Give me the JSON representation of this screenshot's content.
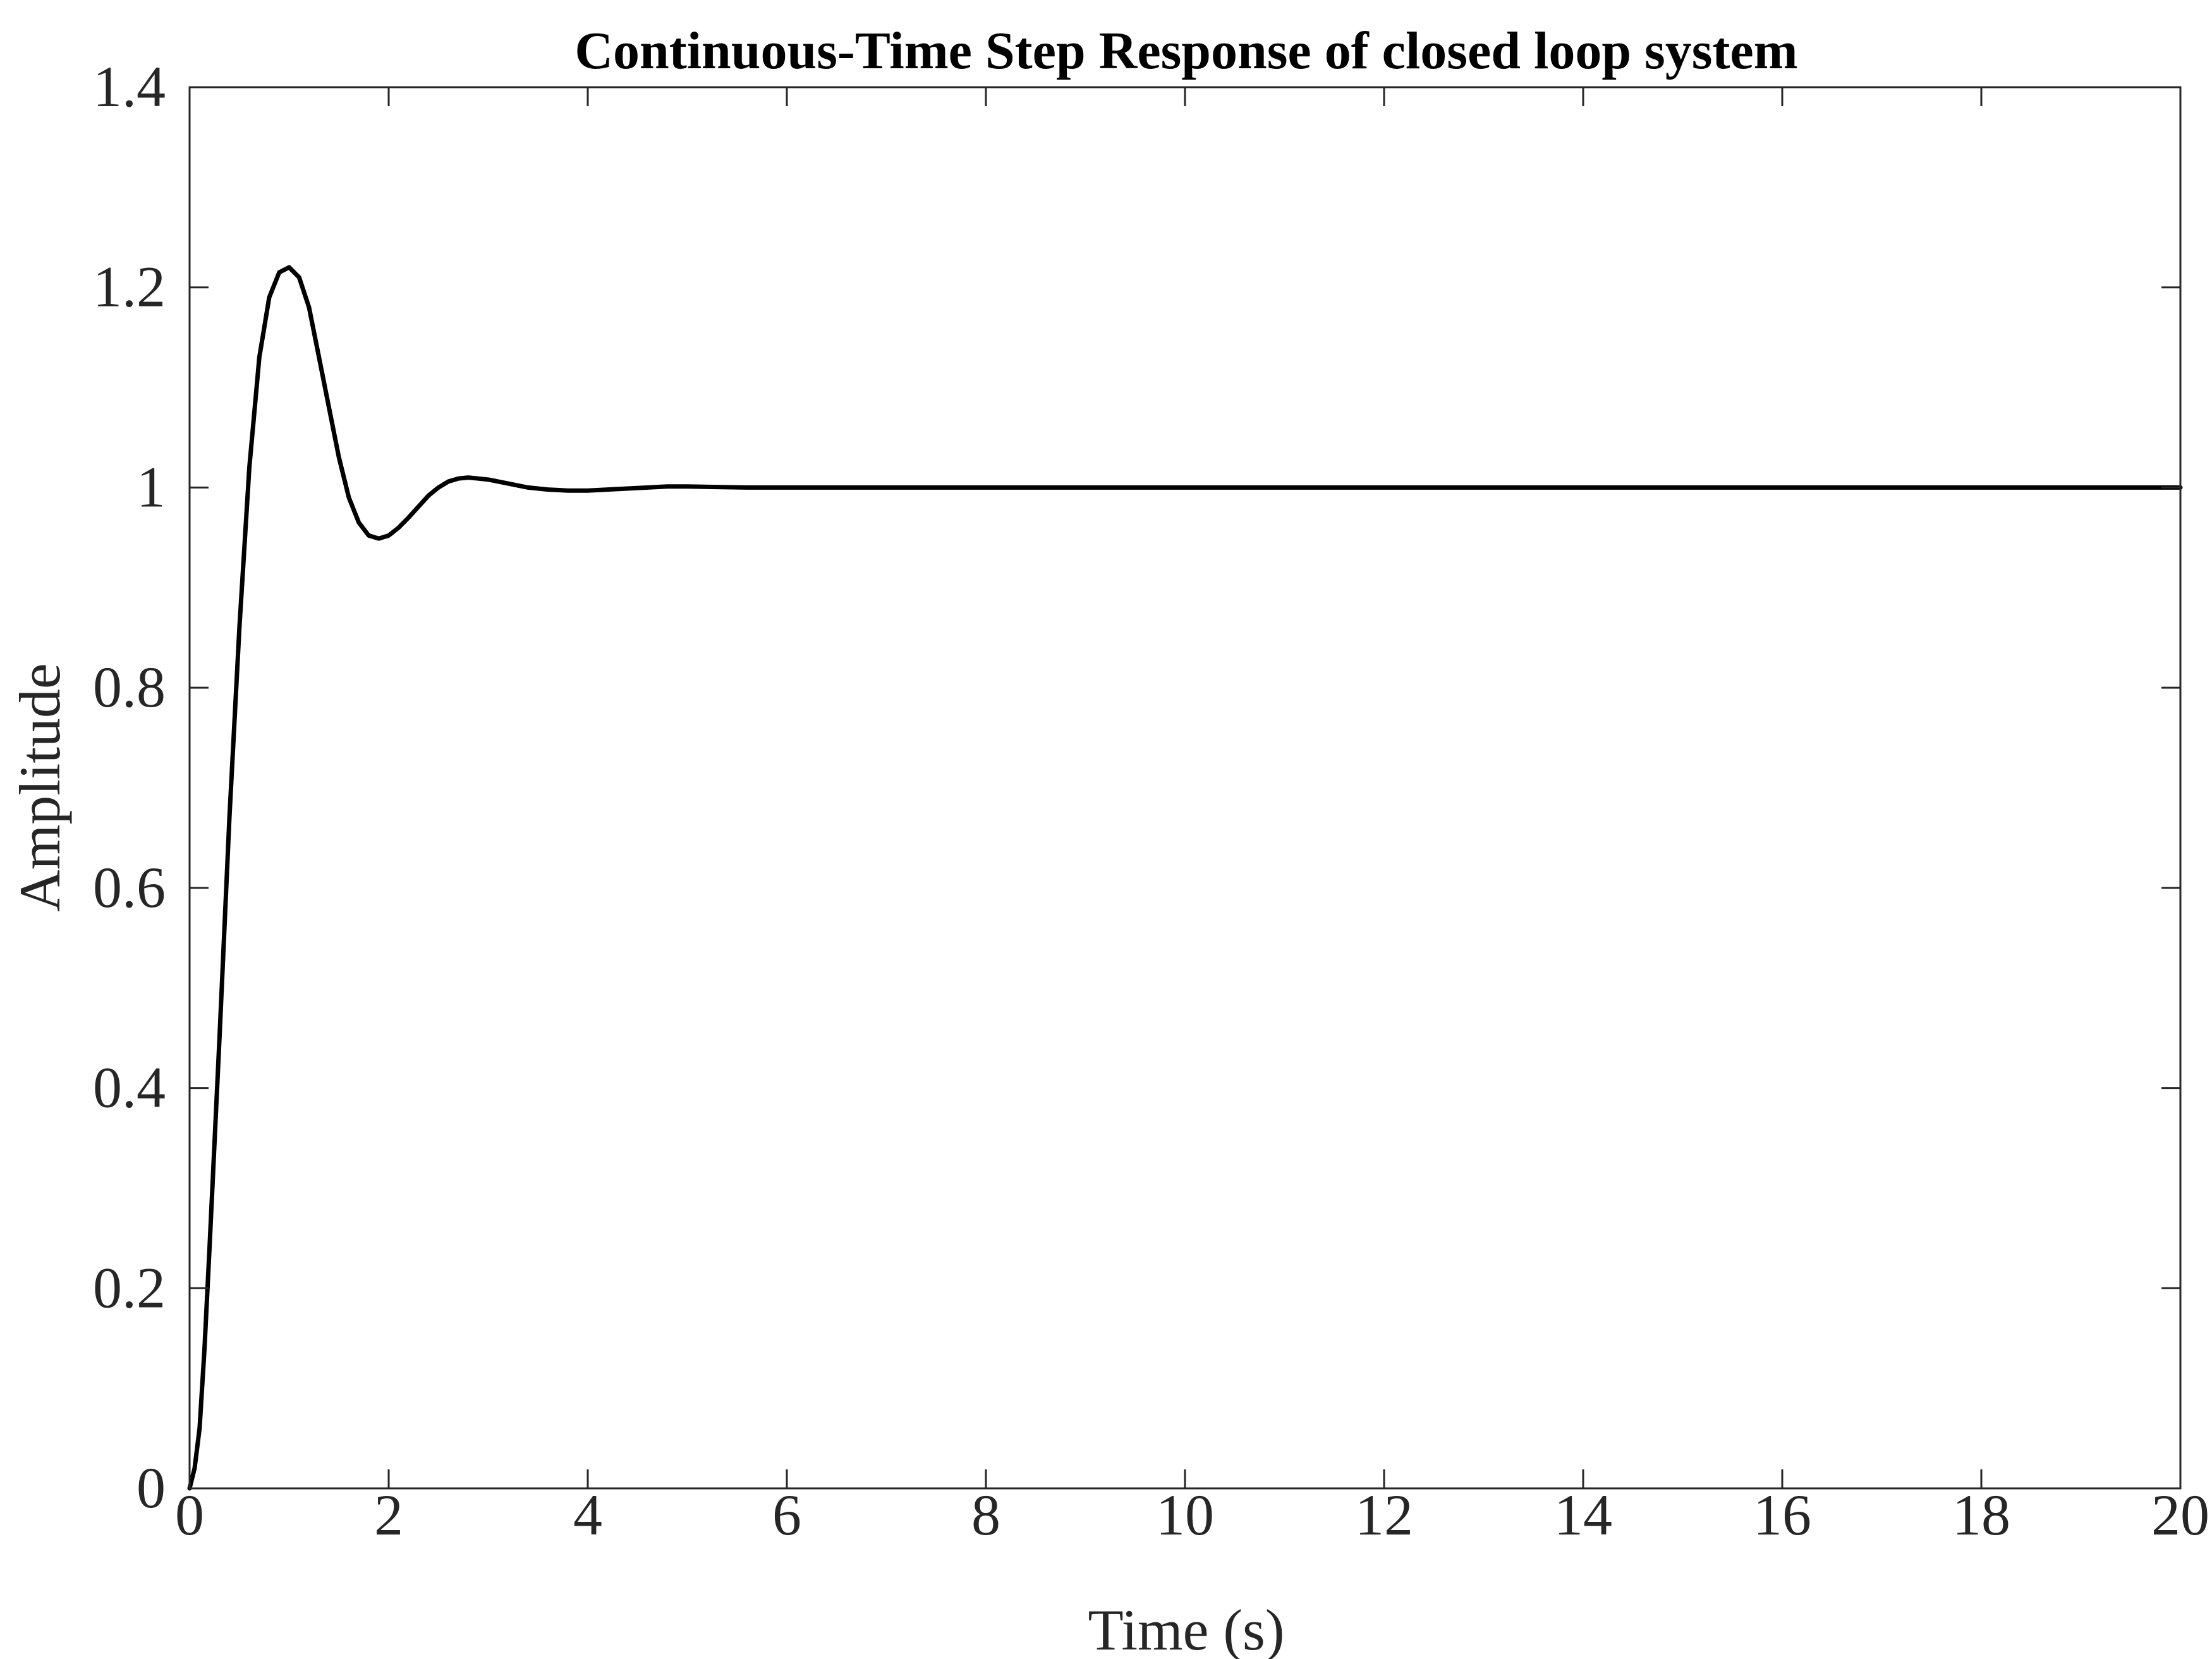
{
  "chart_data": {
    "type": "line",
    "title": "Continuous-Time Step Response of closed loop system",
    "xlabel": "Time (s)",
    "ylabel": "Amplitude",
    "xlim": [
      0,
      20
    ],
    "ylim": [
      0,
      1.4
    ],
    "x_ticks": [
      0,
      2,
      4,
      6,
      8,
      10,
      12,
      14,
      16,
      18,
      20
    ],
    "x_tick_labels": [
      "0",
      "2",
      "4",
      "6",
      "8",
      "10",
      "12",
      "14",
      "16",
      "18",
      "20"
    ],
    "y_ticks": [
      0,
      0.2,
      0.4,
      0.6,
      0.8,
      1.0,
      1.2,
      1.4
    ],
    "y_tick_labels": [
      "0",
      "0.2",
      "0.4",
      "0.6",
      "0.8",
      "1",
      "1.2",
      "1.4"
    ],
    "grid": false,
    "line_color": "#000000",
    "axes_color": "#262626",
    "series": [
      {
        "x": [
          0,
          0.05,
          0.1,
          0.15,
          0.2,
          0.3,
          0.4,
          0.5,
          0.6,
          0.7,
          0.8,
          0.9,
          1.0,
          1.1,
          1.2,
          1.3,
          1.4,
          1.5,
          1.6,
          1.7,
          1.8,
          1.9,
          2.0,
          2.1,
          2.2,
          2.3,
          2.4,
          2.5,
          2.6,
          2.7,
          2.8,
          2.9,
          3.0,
          3.1,
          3.2,
          3.4,
          3.6,
          3.8,
          4.0,
          4.2,
          4.4,
          4.6,
          4.8,
          5.0,
          5.3,
          5.6,
          6.0,
          7.0,
          8.0,
          10.0,
          12.0,
          14.0,
          16.0,
          18.0,
          20.0
        ],
        "y": [
          0,
          0.02,
          0.06,
          0.14,
          0.24,
          0.45,
          0.67,
          0.86,
          1.02,
          1.13,
          1.19,
          1.215,
          1.22,
          1.21,
          1.18,
          1.13,
          1.08,
          1.03,
          0.99,
          0.965,
          0.952,
          0.949,
          0.952,
          0.96,
          0.97,
          0.981,
          0.992,
          1.0,
          1.006,
          1.009,
          1.01,
          1.009,
          1.008,
          1.006,
          1.004,
          1.0,
          0.998,
          0.997,
          0.997,
          0.998,
          0.999,
          1.0,
          1.001,
          1.001,
          1.0005,
          1.0,
          1.0,
          1.0,
          1.0,
          1.0,
          1.0,
          1.0,
          1.0,
          1.0,
          1.0
        ]
      }
    ]
  }
}
